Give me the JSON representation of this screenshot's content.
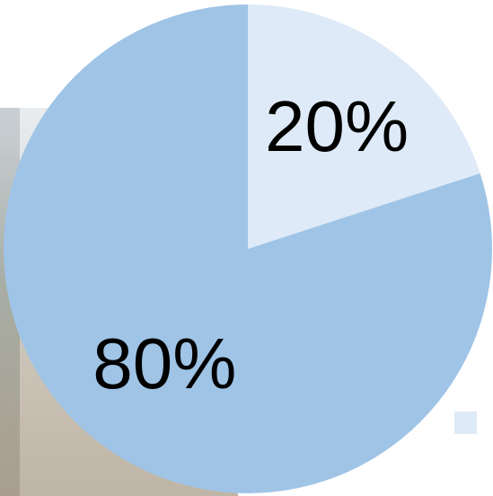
{
  "chart_data": {
    "type": "pie",
    "categories": [
      "",
      ""
    ],
    "values": [
      20,
      80
    ],
    "labels": [
      "20%",
      "80%"
    ],
    "colors": [
      "#deeaf7",
      "#9fc4e6"
    ],
    "start_angle_deg": 0,
    "direction": "clockwise",
    "legend_position": "bottom-right",
    "legend": [
      {
        "label": "",
        "color": "#deeaf7"
      }
    ]
  }
}
